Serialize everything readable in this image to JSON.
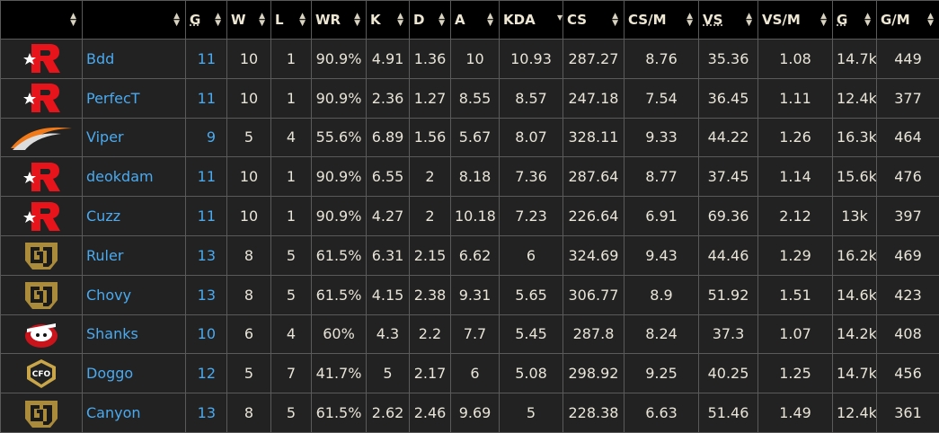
{
  "headers": [
    "",
    "",
    "G",
    "W",
    "L",
    "WR",
    "K",
    "D",
    "A",
    "KDA",
    "CS",
    "CS/M",
    "VS",
    "VS/M",
    "G",
    "G/M"
  ],
  "sort_column": "KDA",
  "sort_direction": "descending",
  "colors": {
    "link": "#4aaaf0",
    "text": "#e8e4d8",
    "header_bg": "#000000",
    "row_bg": "#222222"
  },
  "rows": [
    {
      "team_logo": "kt-rolster-logo",
      "player": "Bdd",
      "g": "11",
      "w": "10",
      "l": "1",
      "wr": "90.9%",
      "k": "4.91",
      "d": "1.36",
      "a": "10",
      "kda": "10.93",
      "cs": "287.27",
      "csm": "8.76",
      "vs": "35.36",
      "vsm": "1.08",
      "gold": "14.7k",
      "gm": "449"
    },
    {
      "team_logo": "kt-rolster-logo",
      "player": "PerfecT",
      "g": "11",
      "w": "10",
      "l": "1",
      "wr": "90.9%",
      "k": "2.36",
      "d": "1.27",
      "a": "8.55",
      "kda": "8.57",
      "cs": "247.18",
      "csm": "7.54",
      "vs": "36.45",
      "vsm": "1.11",
      "gold": "12.4k",
      "gm": "377"
    },
    {
      "team_logo": "hanwha-life-logo",
      "player": "Viper",
      "g": "9",
      "w": "5",
      "l": "4",
      "wr": "55.6%",
      "k": "6.89",
      "d": "1.56",
      "a": "5.67",
      "kda": "8.07",
      "cs": "328.11",
      "csm": "9.33",
      "vs": "44.22",
      "vsm": "1.26",
      "gold": "16.3k",
      "gm": "464"
    },
    {
      "team_logo": "kt-rolster-logo",
      "player": "deokdam",
      "g": "11",
      "w": "10",
      "l": "1",
      "wr": "90.9%",
      "k": "6.55",
      "d": "2",
      "a": "8.18",
      "kda": "7.36",
      "cs": "287.64",
      "csm": "8.77",
      "vs": "37.45",
      "vsm": "1.14",
      "gold": "15.6k",
      "gm": "476"
    },
    {
      "team_logo": "kt-rolster-logo",
      "player": "Cuzz",
      "g": "11",
      "w": "10",
      "l": "1",
      "wr": "90.9%",
      "k": "4.27",
      "d": "2",
      "a": "10.18",
      "kda": "7.23",
      "cs": "226.64",
      "csm": "6.91",
      "vs": "69.36",
      "vsm": "2.12",
      "gold": "13k",
      "gm": "397"
    },
    {
      "team_logo": "gen-g-logo",
      "player": "Ruler",
      "g": "13",
      "w": "8",
      "l": "5",
      "wr": "61.5%",
      "k": "6.31",
      "d": "2.15",
      "a": "6.62",
      "kda": "6",
      "cs": "324.69",
      "csm": "9.43",
      "vs": "44.46",
      "vsm": "1.29",
      "gold": "16.2k",
      "gm": "469"
    },
    {
      "team_logo": "gen-g-logo",
      "player": "Chovy",
      "g": "13",
      "w": "8",
      "l": "5",
      "wr": "61.5%",
      "k": "4.15",
      "d": "2.38",
      "a": "9.31",
      "kda": "5.65",
      "cs": "306.77",
      "csm": "8.9",
      "vs": "51.92",
      "vsm": "1.51",
      "gold": "14.6k",
      "gm": "423"
    },
    {
      "team_logo": "shanks-team-logo",
      "player": "Shanks",
      "g": "10",
      "w": "6",
      "l": "4",
      "wr": "60%",
      "k": "4.3",
      "d": "2.2",
      "a": "7.7",
      "kda": "5.45",
      "cs": "287.8",
      "csm": "8.24",
      "vs": "37.3",
      "vsm": "1.07",
      "gold": "14.2k",
      "gm": "408"
    },
    {
      "team_logo": "cfo-logo",
      "player": "Doggo",
      "g": "12",
      "w": "5",
      "l": "7",
      "wr": "41.7%",
      "k": "5",
      "d": "2.17",
      "a": "6",
      "kda": "5.08",
      "cs": "298.92",
      "csm": "9.25",
      "vs": "40.25",
      "vsm": "1.25",
      "gold": "14.7k",
      "gm": "456"
    },
    {
      "team_logo": "gen-g-logo",
      "player": "Canyon",
      "g": "13",
      "w": "8",
      "l": "5",
      "wr": "61.5%",
      "k": "2.62",
      "d": "2.46",
      "a": "9.69",
      "kda": "5",
      "cs": "228.38",
      "csm": "6.63",
      "vs": "51.46",
      "vsm": "1.49",
      "gold": "12.4k",
      "gm": "361"
    }
  ]
}
